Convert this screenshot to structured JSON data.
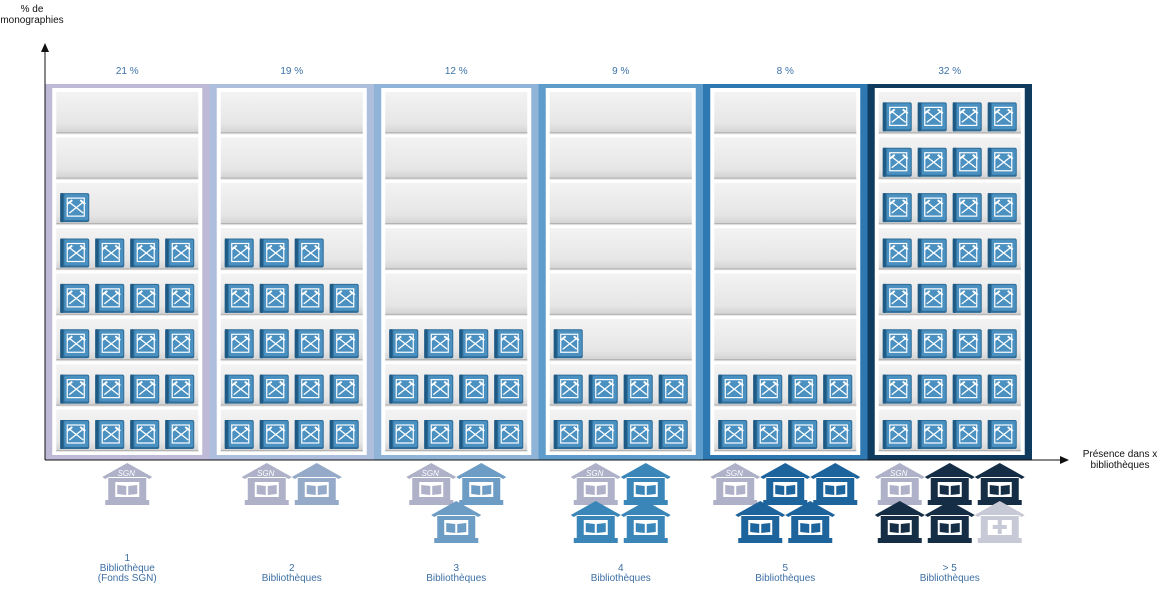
{
  "chart_data": {
    "type": "bar",
    "ylabel": "% de monographies",
    "xlabel": "Présence dans x bibliothèques",
    "categories": [
      "1 Bibliothèque (Fonds SGN)",
      "2 Bibliothèques",
      "3 Bibliothèques",
      "4 Bibliothèques",
      "5 Bibliothèques",
      "> 5 Bibliothèques"
    ],
    "category_lines": [
      [
        "1",
        "Bibliothèque",
        "(Fonds SGN)"
      ],
      [
        "2",
        "Bibliothèques"
      ],
      [
        "3",
        "Bibliothèques"
      ],
      [
        "4",
        "Bibliothèques"
      ],
      [
        "5",
        "Bibliothèques"
      ],
      [
        "> 5",
        "Bibliothèques"
      ]
    ],
    "values": [
      21,
      19,
      12,
      9,
      8,
      32
    ],
    "value_labels": [
      "21 %",
      "19 %",
      "12 %",
      "9 %",
      "8 %",
      "32 %"
    ],
    "books_shown": [
      21,
      19,
      12,
      9,
      8,
      32
    ],
    "libraries_shown": [
      1,
      2,
      3,
      4,
      5,
      6
    ],
    "shelves_per_bookcase": 8,
    "books_per_shelf": 4,
    "sgn_label": "SGN",
    "colors": {
      "panel_bg": [
        "#bdb9d6",
        "#aebfde",
        "#8fb4d8",
        "#5d9ccb",
        "#2f79b2",
        "#0f3b5e"
      ],
      "library_icon": [
        "#a9a8c9",
        "#95a9c9",
        "#6d9cc4",
        "#3a86b8",
        "#1d639c",
        "#152e46"
      ],
      "sgn_icon": "#aeb1c8",
      "book": "#4a90c0",
      "book_dark": "#2e6d99",
      "axis": "#111111",
      "percent_text": "#3d72a8"
    }
  },
  "axes": {
    "y_label_lines": [
      "% de",
      "monographies"
    ],
    "x_label_lines": [
      "Présence dans x",
      "bibliothèques"
    ]
  }
}
